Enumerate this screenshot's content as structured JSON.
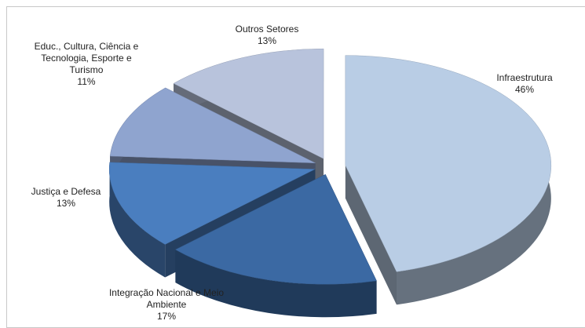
{
  "chart_data": {
    "type": "pie",
    "categories": [
      "Infraestrutura",
      "Integração Nacional e Meio Ambiente",
      "Justiça e Defesa",
      "Educ., Cultura, Ciência e Tecnologia, Esporte e Turismo",
      "Outros Setores"
    ],
    "values": [
      46,
      17,
      13,
      11,
      13
    ],
    "value_labels": [
      "46%",
      "17%",
      "13%",
      "11%",
      "13%"
    ],
    "colors": [
      "#b9cde5",
      "#3b69a3",
      "#4a7ebf",
      "#8fa4cf",
      "#b8c3dc"
    ]
  }
}
